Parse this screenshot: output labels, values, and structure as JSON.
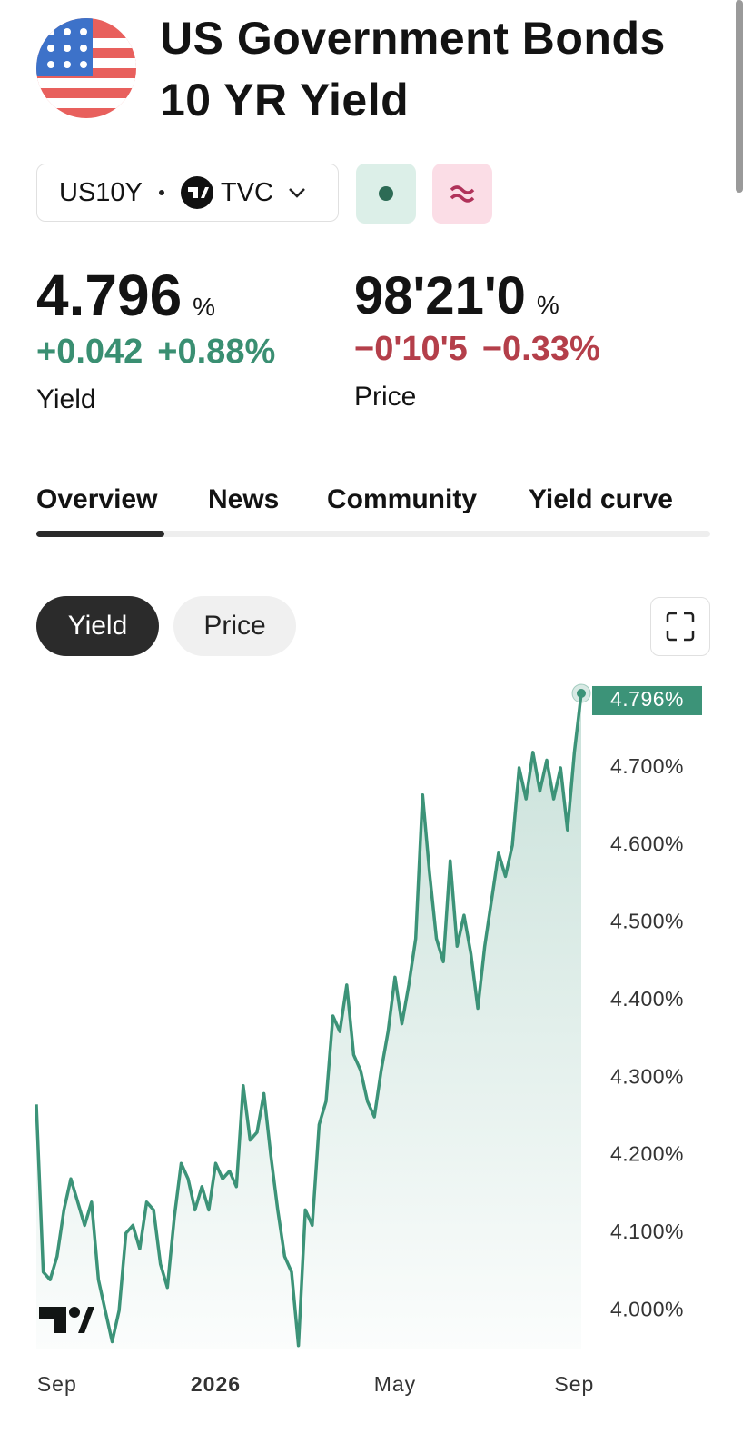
{
  "header": {
    "title": [
      "US Government Bonds",
      "10 YR Yield"
    ]
  },
  "symbol": {
    "ticker": "US10Y",
    "exchange": "TVC"
  },
  "quotes": {
    "yield": {
      "value": "4.796",
      "unit": "%",
      "change": "+0.042",
      "change_percent": "+0.88%",
      "label": "Yield"
    },
    "price": {
      "value": "98'21'0",
      "unit": "%",
      "change": "−0'10'5",
      "change_percent": "−0.33%",
      "label": "Price"
    }
  },
  "tabs": [
    "Overview",
    "News",
    "Community",
    "Yield curve"
  ],
  "toggles": [
    "Yield",
    "Price"
  ],
  "chart_data": {
    "type": "line",
    "color": "#3c9378",
    "categories": [
      null,
      null,
      null,
      "Sep",
      null,
      null,
      null,
      null,
      null,
      null,
      null,
      null,
      null,
      null,
      null,
      null,
      null,
      null,
      null,
      null,
      null,
      null,
      null,
      null,
      null,
      null,
      "2026",
      null,
      null,
      null,
      null,
      null,
      null,
      null,
      null,
      null,
      null,
      null,
      null,
      null,
      null,
      null,
      null,
      null,
      null,
      null,
      null,
      null,
      null,
      null,
      null,
      null,
      "May",
      null,
      null,
      null,
      null,
      null,
      null,
      null,
      null,
      null,
      null,
      null,
      null,
      null,
      null,
      null,
      null,
      null,
      null,
      null,
      null,
      null,
      null,
      null,
      null,
      null,
      "Sep",
      null
    ],
    "values": [
      4.266,
      4.05,
      4.04,
      4.07,
      4.13,
      4.17,
      4.14,
      4.11,
      4.14,
      4.04,
      4.0,
      3.96,
      4.0,
      4.1,
      4.11,
      4.08,
      4.14,
      4.13,
      4.06,
      4.03,
      4.12,
      4.19,
      4.17,
      4.13,
      4.16,
      4.13,
      4.19,
      4.17,
      4.18,
      4.16,
      4.29,
      4.22,
      4.23,
      4.28,
      4.2,
      4.13,
      4.07,
      4.05,
      3.955,
      4.13,
      4.11,
      4.24,
      4.27,
      4.38,
      4.36,
      4.42,
      4.33,
      4.31,
      4.27,
      4.25,
      4.31,
      4.36,
      4.43,
      4.37,
      4.42,
      4.48,
      4.665,
      4.565,
      4.48,
      4.45,
      4.58,
      4.47,
      4.51,
      4.46,
      4.39,
      4.47,
      4.53,
      4.59,
      4.56,
      4.6,
      4.7,
      4.66,
      4.72,
      4.67,
      4.71,
      4.66,
      4.7,
      4.62,
      4.72,
      4.796
    ],
    "value_labels": [
      null,
      null,
      null,
      null,
      null,
      null,
      null,
      null,
      null,
      null,
      null,
      null,
      null,
      null,
      null,
      null,
      null,
      null,
      null,
      null,
      null,
      null,
      null,
      null,
      null,
      null,
      null,
      null,
      null,
      null,
      null,
      null,
      null,
      null,
      null,
      null,
      null,
      null,
      null,
      null,
      null,
      null,
      null,
      null,
      null,
      null,
      null,
      null,
      null,
      null,
      null,
      null,
      null,
      null,
      null,
      null,
      null,
      null,
      null,
      null,
      null,
      null,
      null,
      null,
      null,
      null,
      null,
      null,
      null,
      null,
      null,
      null,
      null,
      null,
      null,
      null,
      null,
      null,
      null,
      "4.796%"
    ],
    "ylim": [
      3.95,
      4.82
    ],
    "yticks": [
      {
        "value": 4.0,
        "label": "4.000%"
      },
      {
        "value": 4.1,
        "label": "4.100%"
      },
      {
        "value": 4.2,
        "label": "4.200%"
      },
      {
        "value": 4.3,
        "label": "4.300%"
      },
      {
        "value": 4.4,
        "label": "4.400%"
      },
      {
        "value": 4.5,
        "label": "4.500%"
      },
      {
        "value": 4.6,
        "label": "4.600%"
      },
      {
        "value": 4.7,
        "label": "4.700%"
      }
    ],
    "grid": false
  }
}
